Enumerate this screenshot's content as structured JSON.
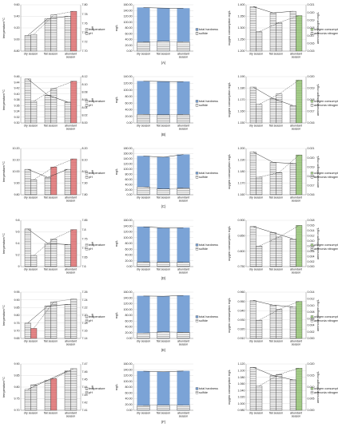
{
  "panel_labels": [
    "(A)",
    "(B)",
    "(C)",
    "(D)",
    "(E)",
    "(F)"
  ],
  "colors": {
    "temperature_bar": "#ffffff",
    "ph_bar_highlight": "#e8898a",
    "hardness_bar": "#7ba3d6",
    "sulfide_bar": "#ffffff",
    "oxygen_bar": "#ffffff",
    "ammonia_bar_highlight": "#a8d08d",
    "line": "#333333"
  },
  "chart_data": [
    {
      "type": "bar",
      "panel": "(A)",
      "subchart": "temperature-pH",
      "categories": [
        "dry season",
        "flat season",
        "abundant season"
      ],
      "ylabel": "temperature/°C",
      "y2label": "pH",
      "ylim": [
        8.8,
        9.6
      ],
      "y2lim": [
        7.7,
        7.8
      ],
      "yticks": [
        "8.80",
        "9.00",
        "9.20",
        "9.40",
        "9.60"
      ],
      "y2ticks": [
        "7.70",
        "7.72",
        "7.74",
        "7.76",
        "7.78",
        "7.80"
      ],
      "legend": [
        "temperature",
        "pH"
      ],
      "series": [
        {
          "name": "temperature",
          "values": [
            9.07,
            9.36,
            9.4
          ]
        },
        {
          "name": "pH",
          "values": [
            7.736,
            7.778,
            7.786
          ]
        }
      ],
      "highlight": [
        0,
        0,
        1
      ]
    },
    {
      "type": "bar",
      "panel": "(A)",
      "subchart": "hardness-sulfide",
      "categories": [
        "dry season",
        "flat season",
        "abundant season"
      ],
      "ylabel": "mg/L",
      "ylim": [
        0,
        160
      ],
      "yticks": [
        "0.00",
        "20.00",
        "40.00",
        "60.00",
        "80.00",
        "100.00",
        "120.00",
        "140.00",
        "160.00"
      ],
      "legend": [
        "total hardness",
        "sulfide"
      ],
      "series": [
        {
          "name": "total hardness",
          "values": [
            150.2,
            148.5,
            147.6
          ]
        },
        {
          "name": "sulfide",
          "values": [
            31.5,
            33.6,
            32.0
          ]
        }
      ]
    },
    {
      "type": "bar",
      "panel": "(A)",
      "subchart": "oxygen-ammonia",
      "categories": [
        "dry season",
        "flat season",
        "abundant season"
      ],
      "ylabel": "oxygen consumption mg/L",
      "y2label": "ammonia nitrogen mg/L",
      "ylim": [
        1.2,
        1.4
      ],
      "y2lim": [
        0.015,
        0.021
      ],
      "yticks": [
        "1.200",
        "1.250",
        "1.300",
        "1.350",
        "1.400"
      ],
      "y2ticks": [
        "0.015",
        "0.016",
        "0.017",
        "0.018",
        "0.019",
        "0.020",
        "0.021"
      ],
      "legend": [
        "oxygen consumption",
        "ammonia nitrogen"
      ],
      "series": [
        {
          "name": "oxygen consumption",
          "values": [
            1.392,
            1.365,
            1.372
          ]
        },
        {
          "name": "ammonia nitrogen",
          "values": [
            0.0175,
            0.0187,
            0.0196
          ]
        }
      ],
      "highlight": [
        0,
        0,
        1
      ]
    },
    {
      "type": "bar",
      "panel": "(B)",
      "subchart": "temperature-pH",
      "categories": [
        "dry season",
        "flat season",
        "abundant season"
      ],
      "ylabel": "temperature/°C",
      "y2label": "pH",
      "ylim": [
        9.3,
        9.46
      ],
      "y2lim": [
        8.0,
        8.12
      ],
      "yticks": [
        "9.30",
        "9.32",
        "9.34",
        "9.36",
        "9.38",
        "9.40",
        "9.42",
        "9.44",
        "9.46"
      ],
      "y2ticks": [
        "8.00",
        "8.02",
        "8.04",
        "8.06",
        "8.08",
        "8.10",
        "8.12"
      ],
      "legend": [
        "temperature",
        "pH"
      ],
      "series": [
        {
          "name": "temperature",
          "values": [
            9.452,
            9.396,
            9.372
          ]
        },
        {
          "name": "pH",
          "values": [
            8.056,
            8.089,
            8.108
          ]
        }
      ],
      "highlight": [
        0,
        0,
        1
      ]
    },
    {
      "type": "bar",
      "panel": "(B)",
      "subchart": "hardness-sulfide",
      "categories": [
        "dry season",
        "flat season",
        "abundant season"
      ],
      "ylabel": "mg/L",
      "ylim": [
        0,
        140
      ],
      "yticks": [
        "0.00",
        "20.00",
        "40.00",
        "60.00",
        "80.00",
        "100.00",
        "120.00",
        "140.00"
      ],
      "legend": [
        "total hardness",
        "sulfide"
      ],
      "series": [
        {
          "name": "total hardness",
          "values": [
            126.1,
            125.3,
            124.7
          ]
        },
        {
          "name": "sulfide",
          "values": [
            26.0,
            24.6,
            25.5
          ]
        }
      ]
    },
    {
      "type": "bar",
      "panel": "(B)",
      "subchart": "oxygen-ammonia",
      "categories": [
        "dry season",
        "flat season",
        "abundant season"
      ],
      "ylabel": "oxygen consumption mg/L",
      "y2label": "ammonia nitrogen mg/L",
      "ylim": [
        1.15,
        1.19
      ],
      "y2lim": [
        0.016,
        0.02
      ],
      "yticks": [
        "1.150",
        "1.160",
        "1.170",
        "1.180",
        "1.190"
      ],
      "y2ticks": [
        "0.016",
        "0.017",
        "0.018",
        "0.019",
        "0.020"
      ],
      "legend": [
        "oxygen consumption",
        "ammonia nitrogen"
      ],
      "series": [
        {
          "name": "oxygen consumption",
          "values": [
            1.181,
            1.171,
            1.165
          ]
        },
        {
          "name": "ammonia nitrogen",
          "values": [
            0.0176,
            0.0185,
            0.0197
          ]
        }
      ],
      "highlight": [
        0,
        0,
        1
      ]
    },
    {
      "type": "bar",
      "panel": "(C)",
      "subchart": "temperature-pH",
      "categories": [
        "dry season",
        "flat season",
        "abundant season"
      ],
      "ylabel": "temperature/°C",
      "y2label": "pH",
      "ylim": [
        9.8,
        10.2
      ],
      "y2lim": [
        7.8,
        8.2
      ],
      "yticks": [
        "9.80",
        "9.90",
        "10.00",
        "10.10",
        "10.20"
      ],
      "y2ticks": [
        "7.80",
        "7.90",
        "8.00",
        "8.10",
        "8.20"
      ],
      "legend": [
        "temperature",
        "pH"
      ],
      "series": [
        {
          "name": "temperature",
          "values": [
            10.02,
            9.95,
            10.02
          ]
        },
        {
          "name": "pH",
          "values": [
            7.93,
            8.04,
            8.11
          ]
        }
      ],
      "highlight": [
        0,
        1,
        1
      ]
    },
    {
      "type": "bar",
      "panel": "(C)",
      "subchart": "hardness-sulfide",
      "categories": [
        "dry season",
        "flat season",
        "abundant season"
      ],
      "ylabel": "mg/L",
      "ylim": [
        0,
        180
      ],
      "yticks": [
        "0.00",
        "20.00",
        "40.00",
        "60.00",
        "80.00",
        "100.00",
        "120.00",
        "140.00",
        "160.00",
        "180.00"
      ],
      "legend": [
        "total hardness",
        "sulfide"
      ],
      "series": [
        {
          "name": "total hardness",
          "values": [
            150.4,
            146.2,
            156.3
          ]
        },
        {
          "name": "sulfide",
          "values": [
            30.2,
            22.5,
            26.1
          ]
        }
      ]
    },
    {
      "type": "bar",
      "panel": "(C)",
      "subchart": "oxygen-ammonia",
      "categories": [
        "dry season",
        "flat season",
        "abundant season"
      ],
      "ylabel": "oxygen consumption mg/L",
      "y2label": "ammonia nitrogen mg/L",
      "ylim": [
        1.16,
        1.2
      ],
      "y2lim": [
        0.016,
        0.021
      ],
      "yticks": [
        "1.160",
        "1.170",
        "1.180",
        "1.190",
        "1.200"
      ],
      "y2ticks": [
        "0.016",
        "0.017",
        "0.018",
        "0.019",
        "0.020",
        "0.021"
      ],
      "legend": [
        "oxygen consumption",
        "ammonia nitrogen"
      ],
      "series": [
        {
          "name": "oxygen consumption",
          "values": [
            1.197,
            1.188,
            1.187
          ]
        },
        {
          "name": "ammonia nitrogen",
          "values": [
            0.0179,
            0.0184,
            0.0203
          ]
        }
      ],
      "highlight": [
        0,
        0,
        1
      ]
    },
    {
      "type": "bar",
      "panel": "(D)",
      "subchart": "temperature-pH",
      "categories": [
        "dry season",
        "flat season",
        "abundant season"
      ],
      "ylabel": "temperature/°C",
      "y2label": "pH",
      "ylim": [
        9.0,
        9.8
      ],
      "y2lim": [
        7.6,
        7.85
      ],
      "yticks": [
        "9",
        "9.2",
        "9.4",
        "9.6",
        "9.8"
      ],
      "y2ticks": [
        "7.6",
        "7.65",
        "7.7",
        "7.75",
        "7.8",
        "7.85"
      ],
      "legend": [
        "temperature",
        "pH"
      ],
      "series": [
        {
          "name": "temperature",
          "values": [
            9.65,
            9.4,
            9.38
          ]
        },
        {
          "name": "pH",
          "values": [
            7.66,
            7.75,
            7.8
          ]
        }
      ],
      "highlight": [
        0,
        0,
        1
      ]
    },
    {
      "type": "bar",
      "panel": "(D)",
      "subchart": "hardness-sulfide",
      "categories": [
        "dry season",
        "flat season",
        "abundant season"
      ],
      "ylabel": "mg/L",
      "ylim": [
        0,
        160
      ],
      "yticks": [
        "0.00",
        "20.00",
        "40.00",
        "60.00",
        "80.00",
        "100.00",
        "120.00",
        "140.00",
        "160.00"
      ],
      "legend": [
        "total hardness",
        "sulfide"
      ],
      "series": [
        {
          "name": "total hardness",
          "values": [
            137.5,
            133.5,
            134.0
          ]
        },
        {
          "name": "sulfide",
          "values": [
            16.2,
            15.8,
            15.0
          ]
        }
      ]
    },
    {
      "type": "bar",
      "panel": "(D)",
      "subchart": "oxygen-ammonia",
      "categories": [
        "dry season",
        "flat season",
        "abundant season"
      ],
      "ylabel": "oxygen consumption mg/L",
      "y2label": "ammonia nitrogen mg/L",
      "ylim": [
        0.75,
        0.9
      ],
      "y2lim": [
        0.0,
        0.018
      ],
      "yticks": [
        "0.750",
        "0.800",
        "0.850",
        "0.900"
      ],
      "y2ticks": [
        "0.000",
        "0.002",
        "0.004",
        "0.006",
        "0.008",
        "0.010",
        "0.012",
        "0.014",
        "0.016",
        "0.018"
      ],
      "legend": [
        "oxygen consumption",
        "ammonia nitrogen"
      ],
      "series": [
        {
          "name": "oxygen consumption",
          "values": [
            0.88,
            0.86,
            0.84
          ]
        },
        {
          "name": "ammonia nitrogen",
          "values": [
            0.008,
            0.0115,
            0.016
          ]
        }
      ],
      "highlight": [
        0,
        0,
        1
      ]
    },
    {
      "type": "bar",
      "panel": "(E)",
      "subchart": "temperature-pH",
      "categories": [
        "dry season",
        "flat season",
        "abundant season"
      ],
      "ylabel": "temperature/°C",
      "y2label": "pH",
      "ylim": [
        9.65,
        9.95
      ],
      "y2lim": [
        7.14,
        7.26
      ],
      "yticks": [
        "9.65",
        "9.70",
        "9.75",
        "9.80",
        "9.85",
        "9.90",
        "9.95"
      ],
      "y2ticks": [
        "7.14",
        "7.16",
        "7.18",
        "7.20",
        "7.22",
        "7.24",
        "7.26"
      ],
      "legend": [
        "temperature",
        "pH"
      ],
      "series": [
        {
          "name": "temperature",
          "values": [
            9.75,
            9.86,
            9.87
          ]
        },
        {
          "name": "pH",
          "values": [
            7.166,
            7.235,
            7.242
          ]
        }
      ],
      "highlight": [
        1,
        0,
        0
      ]
    },
    {
      "type": "bar",
      "panel": "(E)",
      "subchart": "hardness-sulfide",
      "categories": [
        "dry season",
        "flat season",
        "abundant season"
      ],
      "ylabel": "mg/L",
      "ylim": [
        0,
        160
      ],
      "yticks": [
        "0.00",
        "20.00",
        "40.00",
        "60.00",
        "80.00",
        "100.00",
        "120.00",
        "140.00",
        "160.00"
      ],
      "legend": [
        "total hardness",
        "sulfide"
      ],
      "series": [
        {
          "name": "total hardness",
          "values": [
            146.5,
            145.8,
            148.3
          ]
        },
        {
          "name": "sulfide",
          "values": [
            18.6,
            22.8,
            21.2
          ]
        }
      ]
    },
    {
      "type": "bar",
      "panel": "(E)",
      "subchart": "oxygen-ammonia",
      "categories": [
        "dry season",
        "flat season",
        "abundant season"
      ],
      "ylabel": "oxygen consumption mg/L",
      "y2label": "ammonia nitrogen mg/L",
      "ylim": [
        0.91,
        0.96
      ],
      "y2lim": [
        0.0,
        0.014
      ],
      "yticks": [
        "0.910",
        "0.920",
        "0.930",
        "0.940",
        "0.950",
        "0.960"
      ],
      "y2ticks": [
        "0.000",
        "0.002",
        "0.004",
        "0.006",
        "0.008",
        "0.010",
        "0.012",
        "0.014"
      ],
      "legend": [
        "oxygen consumption",
        "ammonia nitrogen"
      ],
      "series": [
        {
          "name": "oxygen consumption",
          "values": [
            0.951,
            0.946,
            0.944
          ]
        },
        {
          "name": "ammonia nitrogen",
          "values": [
            0.0055,
            0.0088,
            0.0112
          ]
        }
      ],
      "highlight": [
        0,
        0,
        1
      ]
    },
    {
      "type": "bar",
      "panel": "(F)",
      "subchart": "temperature-pH",
      "categories": [
        "dry season",
        "flat season",
        "abundant season"
      ],
      "ylabel": "temperature/°C",
      "y2label": "pH",
      "ylim": [
        9.7,
        9.9
      ],
      "y2lim": [
        7.41,
        7.47
      ],
      "yticks": [
        "9.70",
        "9.75",
        "9.80",
        "9.85",
        "9.90"
      ],
      "y2ticks": [
        "7.41",
        "7.42",
        "7.43",
        "7.44",
        "7.45",
        "7.46",
        "7.47"
      ],
      "legend": [
        "temperature",
        "pH"
      ],
      "series": [
        {
          "name": "temperature",
          "values": [
            9.79,
            9.83,
            9.87
          ]
        },
        {
          "name": "pH",
          "values": [
            7.443,
            7.451,
            7.464
          ]
        }
      ],
      "highlight": [
        0,
        1,
        0
      ]
    },
    {
      "type": "bar",
      "panel": "(F)",
      "subchart": "hardness-sulfide",
      "categories": [
        "dry season",
        "flat season",
        "abundant season"
      ],
      "ylabel": "mg/L",
      "ylim": [
        0,
        160
      ],
      "yticks": [
        "0.00",
        "20.00",
        "40.00",
        "60.00",
        "80.00",
        "100.00",
        "120.00",
        "140.00",
        "160.00"
      ],
      "legend": [
        "total hardness",
        "sulfide"
      ],
      "series": [
        {
          "name": "total hardness",
          "values": [
            135.0,
            133.0,
            135.5
          ]
        },
        {
          "name": "sulfide",
          "values": [
            16.5,
            17.5,
            17.2
          ]
        }
      ]
    },
    {
      "type": "bar",
      "panel": "(F)",
      "subchart": "oxygen-ammonia",
      "categories": [
        "dry season",
        "flat season",
        "abundant season"
      ],
      "ylabel": "oxygen consumption mg/L",
      "y2label": "ammonia nitrogen mg/L",
      "ylim": [
        0.98,
        1.12
      ],
      "y2lim": [
        0.0,
        0.02
      ],
      "yticks": [
        "0.980",
        "1.000",
        "1.020",
        "1.040",
        "1.060",
        "1.080",
        "1.100",
        "1.120"
      ],
      "y2ticks": [
        "0.000",
        "0.005",
        "0.010",
        "0.015",
        "0.020"
      ],
      "legend": [
        "oxygen consumption",
        "ammonia nitrogen"
      ],
      "series": [
        {
          "name": "oxygen consumption",
          "values": [
            1.11,
            1.085,
            1.072
          ]
        },
        {
          "name": "ammonia nitrogen",
          "values": [
            0.0105,
            0.0155,
            0.0182
          ]
        }
      ],
      "highlight": [
        0,
        0,
        1
      ]
    }
  ]
}
